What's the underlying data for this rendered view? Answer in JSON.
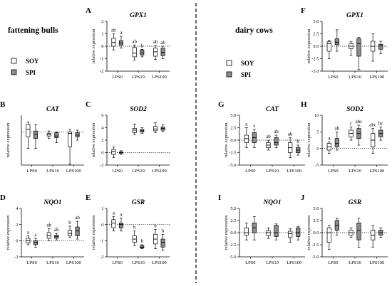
{
  "groups": {
    "left": "fattening bulls",
    "right": "dairy cows"
  },
  "legend": [
    {
      "label": "SOY",
      "color": "#ffffff"
    },
    {
      "label": "SPI",
      "color": "#8c8c8c"
    }
  ],
  "colors": {
    "SOY": "#ffffff",
    "SPI": "#8c8c8c",
    "stroke": "#000000"
  },
  "chart_data": [
    {
      "type": "box",
      "panel": "A",
      "title": "GPX1",
      "ylabel": "relative expression",
      "categories": [
        "LPS0",
        "LPS10",
        "LPS100"
      ],
      "ylim": [
        -2,
        2
      ],
      "yticks": [
        "-2",
        "-1",
        "0",
        "1",
        "2"
      ],
      "refline": 0,
      "letters": [
        [
          "ab",
          "a"
        ],
        [
          "ab",
          "b"
        ],
        [
          "ab",
          "ab"
        ]
      ],
      "series": [
        {
          "name": "SOY",
          "boxes": [
            {
              "min": -0.3,
              "q1": 0.0,
              "median": 0.3,
              "q3": 0.65,
              "max": 1.0
            },
            {
              "min": -1.1,
              "q1": -0.85,
              "median": -0.55,
              "q3": -0.1,
              "max": 0.1
            },
            {
              "min": -1.05,
              "q1": -0.8,
              "median": -0.45,
              "q3": -0.15,
              "max": 0.05
            }
          ]
        },
        {
          "name": "SPI",
          "boxes": [
            {
              "min": -0.15,
              "q1": 0.1,
              "median": 0.25,
              "q3": 0.45,
              "max": 0.8
            },
            {
              "min": -0.85,
              "q1": -0.7,
              "median": -0.55,
              "q3": -0.3,
              "max": -0.25
            },
            {
              "min": -1.0,
              "q1": -0.75,
              "median": -0.5,
              "q3": -0.15,
              "max": 0.0
            }
          ]
        }
      ]
    },
    {
      "type": "box",
      "panel": "B",
      "title": "CAT",
      "ylabel": "relative expression",
      "categories": [
        "LPS0",
        "LPS10",
        "LPS100"
      ],
      "ylim": [
        -4,
        2
      ],
      "yticks": [],
      "refline": 0,
      "letters": [
        [
          "",
          ""
        ],
        [
          "",
          ""
        ],
        [
          "",
          ""
        ]
      ],
      "series": [
        {
          "name": "SOY",
          "boxes": [
            {
              "min": -2.0,
              "q1": -0.6,
              "median": 0.3,
              "q3": 0.9,
              "max": 1.2
            },
            {
              "min": -0.8,
              "q1": -0.5,
              "median": -0.3,
              "q3": -0.2,
              "max": 0.1
            },
            {
              "min": -3.9,
              "q1": -1.8,
              "median": -0.2,
              "q3": 0.0,
              "max": 0.3
            }
          ]
        },
        {
          "name": "SPI",
          "boxes": [
            {
              "min": -2.0,
              "q1": -0.8,
              "median": -0.3,
              "q3": 0.1,
              "max": 0.9
            },
            {
              "min": -1.3,
              "q1": -0.7,
              "median": -0.5,
              "q3": -0.1,
              "max": 0.0
            },
            {
              "min": -1.0,
              "q1": -0.6,
              "median": -0.4,
              "q3": -0.1,
              "max": 0.2
            }
          ]
        }
      ]
    },
    {
      "type": "box",
      "panel": "C",
      "title": "SOD2",
      "ylabel": "relative expression",
      "categories": [
        "LPS0",
        "LPS10",
        "LPS100"
      ],
      "ylim": [
        -2,
        6
      ],
      "yticks": [
        "-2",
        "0",
        "2",
        "4",
        "6"
      ],
      "refline": 0,
      "letters": [
        [
          "",
          ""
        ],
        [
          "",
          ""
        ],
        [
          "",
          ""
        ]
      ],
      "series": [
        {
          "name": "SOY",
          "boxes": [
            {
              "min": -0.8,
              "q1": -0.3,
              "median": 0.2,
              "q3": 0.5,
              "max": 0.9
            },
            {
              "min": 2.9,
              "q1": 3.2,
              "median": 3.6,
              "q3": 3.9,
              "max": 4.6
            },
            {
              "min": 3.2,
              "q1": 3.5,
              "median": 3.8,
              "q3": 4.2,
              "max": 4.8
            }
          ]
        },
        {
          "name": "SPI",
          "boxes": [
            {
              "min": -0.3,
              "q1": -0.1,
              "median": 0.0,
              "q3": 0.1,
              "max": 0.3
            },
            {
              "min": 3.1,
              "q1": 3.3,
              "median": 3.5,
              "q3": 3.7,
              "max": 4.0
            },
            {
              "min": 3.4,
              "q1": 3.6,
              "median": 3.9,
              "q3": 4.1,
              "max": 4.5
            }
          ]
        }
      ]
    },
    {
      "type": "box",
      "panel": "D",
      "title": "NQO1",
      "ylabel": "relative expression",
      "categories": [
        "LPS0",
        "LPS10",
        "LPS100"
      ],
      "ylim": [
        -2,
        4
      ],
      "yticks": [
        "-2",
        "0",
        "2",
        "4"
      ],
      "refline": 0,
      "letters": [
        [
          "a",
          "a"
        ],
        [
          "ab",
          "ab"
        ],
        [
          "b",
          "ab"
        ]
      ],
      "series": [
        {
          "name": "SOY",
          "boxes": [
            {
              "min": -0.5,
              "q1": -0.3,
              "median": 0.0,
              "q3": 0.3,
              "max": 0.6
            },
            {
              "min": 0.0,
              "q1": 0.3,
              "median": 0.6,
              "q3": 1.0,
              "max": 1.5
            },
            {
              "min": 0.4,
              "q1": 0.6,
              "median": 0.9,
              "q3": 1.3,
              "max": 1.8
            }
          ]
        },
        {
          "name": "SPI",
          "boxes": [
            {
              "min": -0.8,
              "q1": -0.5,
              "median": -0.2,
              "q3": 0.0,
              "max": 0.3
            },
            {
              "min": 0.1,
              "q1": 0.3,
              "median": 0.5,
              "q3": 0.7,
              "max": 0.9
            },
            {
              "min": 0.2,
              "q1": 0.6,
              "median": 1.2,
              "q3": 1.7,
              "max": 2.4
            }
          ]
        }
      ]
    },
    {
      "type": "box",
      "panel": "E",
      "title": "GSR",
      "ylabel": "relative expression",
      "categories": [
        "LPS0",
        "LPS10",
        "LPS100"
      ],
      "ylim": [
        -2,
        1
      ],
      "yticks": [
        "-2",
        "-1",
        "0",
        "1"
      ],
      "refline": 0,
      "letters": [
        [
          "a",
          "a"
        ],
        [
          "b",
          "b"
        ],
        [
          "b",
          "b"
        ]
      ],
      "series": [
        {
          "name": "SOY",
          "boxes": [
            {
              "min": -0.4,
              "q1": -0.2,
              "median": 0.1,
              "q3": 0.3,
              "max": 0.5
            },
            {
              "min": -1.3,
              "q1": -1.1,
              "median": -0.9,
              "q3": -0.7,
              "max": -0.4
            },
            {
              "min": -1.5,
              "q1": -1.2,
              "median": -0.9,
              "q3": -0.6,
              "max": -0.3
            }
          ]
        },
        {
          "name": "SPI",
          "boxes": [
            {
              "min": -0.4,
              "q1": -0.2,
              "median": 0.0,
              "q3": 0.1,
              "max": 0.4
            },
            {
              "min": -1.5,
              "q1": -1.45,
              "median": -1.4,
              "q3": -1.3,
              "max": -1.25
            },
            {
              "min": -1.6,
              "q1": -1.4,
              "median": -1.1,
              "q3": -0.9,
              "max": -0.6
            }
          ]
        }
      ]
    },
    {
      "type": "box",
      "panel": "F",
      "title": "GPX1",
      "ylabel": "relative expression",
      "categories": [
        "LPS0",
        "LPS10",
        "LPS100"
      ],
      "ylim": [
        -5,
        5
      ],
      "yticks": [
        "-5.0",
        "-2.5",
        "0.0",
        "2.5",
        "5.0"
      ],
      "refline": 0,
      "letters": [
        [
          "",
          ""
        ],
        [
          "",
          ""
        ],
        [
          "",
          ""
        ]
      ],
      "series": [
        {
          "name": "SOY",
          "boxes": [
            {
              "min": -2.5,
              "q1": -1.0,
              "median": 0.5,
              "q3": 0.9,
              "max": 1.2
            },
            {
              "min": -1.8,
              "q1": -0.5,
              "median": 0.0,
              "q3": 0.5,
              "max": 0.9
            },
            {
              "min": -3.0,
              "q1": -1.0,
              "median": 0.0,
              "q3": 1.0,
              "max": 2.5
            }
          ]
        },
        {
          "name": "SPI",
          "boxes": [
            {
              "min": -1.0,
              "q1": 0.3,
              "median": 0.8,
              "q3": 1.5,
              "max": 3.3
            },
            {
              "min": -4.7,
              "q1": -2.0,
              "median": 0.5,
              "q3": 1.5,
              "max": 1.8
            },
            {
              "min": -1.5,
              "q1": -0.6,
              "median": 0.1,
              "q3": 0.4,
              "max": 1.0
            }
          ]
        }
      ]
    },
    {
      "type": "box",
      "panel": "G",
      "title": "CAT",
      "ylabel": "relative expression",
      "categories": [
        "LPS0",
        "LPS10",
        "LPS100"
      ],
      "ylim": [
        -5,
        5
      ],
      "yticks": [
        "-5.0",
        "-2.5",
        "0.0",
        "2.5",
        "5.0"
      ],
      "refline": 0,
      "letters": [
        [
          "a",
          "a"
        ],
        [
          "ab",
          "ab"
        ],
        [
          "ab",
          "b"
        ]
      ],
      "series": [
        {
          "name": "SOY",
          "boxes": [
            {
              "min": -1.5,
              "q1": -0.5,
              "median": 0.3,
              "q3": 1.0,
              "max": 2.5
            },
            {
              "min": -2.0,
              "q1": -1.5,
              "median": -1.0,
              "q3": -0.5,
              "max": 0.0
            },
            {
              "min": -3.5,
              "q1": -2.5,
              "median": -1.5,
              "q3": -0.5,
              "max": 0.5
            }
          ]
        },
        {
          "name": "SPI",
          "boxes": [
            {
              "min": -1.5,
              "q1": -0.5,
              "median": 0.5,
              "q3": 1.5,
              "max": 2.2
            },
            {
              "min": -1.5,
              "q1": -1.0,
              "median": -0.5,
              "q3": 0.5,
              "max": 1.0
            },
            {
              "min": -3.0,
              "q1": -2.5,
              "median": -2.0,
              "q3": -1.5,
              "max": -1.0
            }
          ]
        }
      ]
    },
    {
      "type": "box",
      "panel": "H",
      "title": "SOD2",
      "ylabel": "relative expression",
      "categories": [
        "LPS0",
        "LPS10",
        "LPS100"
      ],
      "ylim": [
        -5,
        10
      ],
      "yticks": [
        "-5",
        "0",
        "5",
        "10"
      ],
      "refline": 0,
      "letters": [
        [
          "a",
          "ab"
        ],
        [
          "c",
          "abc"
        ],
        [
          "abc",
          "bc"
        ]
      ],
      "series": [
        {
          "name": "SOY",
          "boxes": [
            {
              "min": -1.5,
              "q1": -0.5,
              "median": 0.5,
              "q3": 1.5,
              "max": 2.0
            },
            {
              "min": 2.5,
              "q1": 3.5,
              "median": 4.5,
              "q3": 5.5,
              "max": 6.5
            },
            {
              "min": -1.5,
              "q1": 0.5,
              "median": 2.5,
              "q3": 4.5,
              "max": 6.0
            }
          ]
        },
        {
          "name": "SPI",
          "boxes": [
            {
              "min": -0.5,
              "q1": 0.5,
              "median": 1.5,
              "q3": 3.0,
              "max": 5.0
            },
            {
              "min": 1.0,
              "q1": 3.0,
              "median": 4.5,
              "q3": 6.0,
              "max": 7.0
            },
            {
              "min": 2.5,
              "q1": 3.5,
              "median": 4.5,
              "q3": 5.5,
              "max": 6.5
            }
          ]
        }
      ]
    },
    {
      "type": "box",
      "panel": "I",
      "title": "NQO1",
      "ylabel": "relative expression",
      "categories": [
        "LPS0",
        "LPS10",
        "LPS100"
      ],
      "ylim": [
        -5,
        5
      ],
      "yticks": [
        "-5.0",
        "-2.5",
        "0.0",
        "2.5",
        "5.0"
      ],
      "refline": 0,
      "letters": [
        [
          "",
          ""
        ],
        [
          "",
          ""
        ],
        [
          "",
          ""
        ]
      ],
      "series": [
        {
          "name": "SOY",
          "boxes": [
            {
              "min": -1.5,
              "q1": -0.5,
              "median": 0.0,
              "q3": 1.0,
              "max": 2.0
            },
            {
              "min": -1.2,
              "q1": -0.6,
              "median": 0.0,
              "q3": 0.4,
              "max": 1.0
            },
            {
              "min": -2.0,
              "q1": -1.0,
              "median": -0.2,
              "q3": 0.3,
              "max": 0.8
            }
          ]
        },
        {
          "name": "SPI",
          "boxes": [
            {
              "min": -1.5,
              "q1": 0.0,
              "median": 1.0,
              "q3": 2.0,
              "max": 3.3
            },
            {
              "min": -1.5,
              "q1": -0.8,
              "median": 0.0,
              "q3": 1.5,
              "max": 1.8
            },
            {
              "min": -1.5,
              "q1": -0.8,
              "median": 0.0,
              "q3": 1.0,
              "max": 1.3
            }
          ]
        }
      ]
    },
    {
      "type": "box",
      "panel": "J",
      "title": "GSR",
      "ylabel": "relative expression",
      "categories": [
        "LPS0",
        "LPS10",
        "LPS100"
      ],
      "ylim": [
        -5,
        5
      ],
      "yticks": [
        "-5.0",
        "-2.5",
        "0.0",
        "2.5",
        "5.0"
      ],
      "refline": 0,
      "letters": [
        [
          "",
          ""
        ],
        [
          "",
          ""
        ],
        [
          "",
          ""
        ]
      ],
      "series": [
        {
          "name": "SOY",
          "boxes": [
            {
              "min": -3.5,
              "q1": -2.0,
              "median": 0.0,
              "q3": 1.0,
              "max": 1.5
            },
            {
              "min": -1.0,
              "q1": -0.5,
              "median": 0.0,
              "q3": 0.5,
              "max": 1.0
            },
            {
              "min": -3.0,
              "q1": -1.5,
              "median": -0.5,
              "q3": 0.5,
              "max": 1.5
            }
          ]
        },
        {
          "name": "SPI",
          "boxes": [
            {
              "min": -0.5,
              "q1": 0.5,
              "median": 1.5,
              "q3": 2.5,
              "max": 3.0
            },
            {
              "min": -3.0,
              "q1": -1.5,
              "median": 0.5,
              "q3": 2.0,
              "max": 3.0
            },
            {
              "min": -1.0,
              "q1": -0.5,
              "median": 0.0,
              "q3": 0.5,
              "max": 1.0
            }
          ]
        }
      ]
    }
  ]
}
